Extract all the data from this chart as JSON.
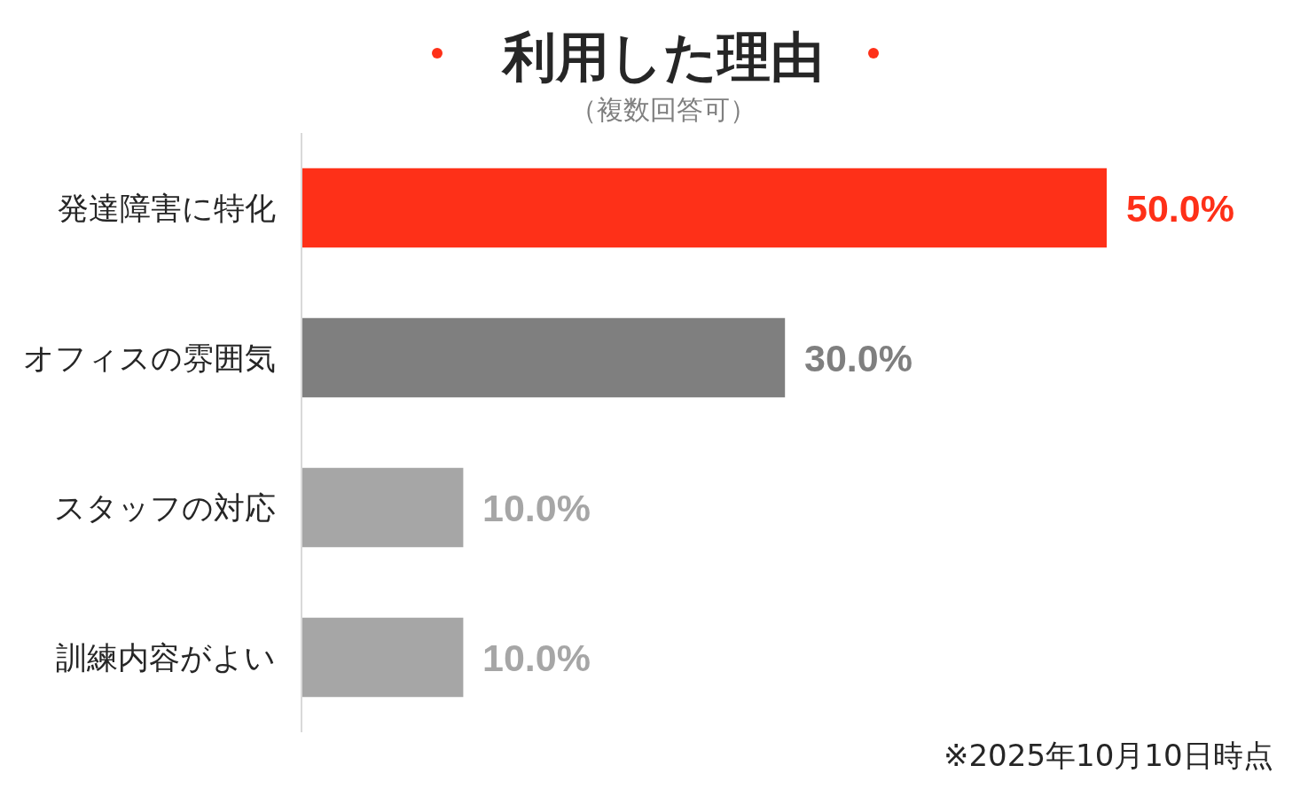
{
  "chart_data": {
    "type": "bar",
    "orientation": "horizontal",
    "title": "利用した理由",
    "subtitle": "（複数回答可）",
    "categories": [
      "発達障害に特化",
      "オフィスの雰囲気",
      "スタッフの対応",
      "訓練内容がよい"
    ],
    "values": [
      50.0,
      30.0,
      10.0,
      10.0
    ],
    "colors": [
      "#fe3018",
      "#7f7f7f",
      "#a6a6a6",
      "#a6a6a6"
    ],
    "value_labels": [
      "50.0%",
      "30.0%",
      "10.0%",
      "10.0%"
    ],
    "tick_labels": "y",
    "annotations": [
      "※2025年10月10日時点"
    ]
  }
}
